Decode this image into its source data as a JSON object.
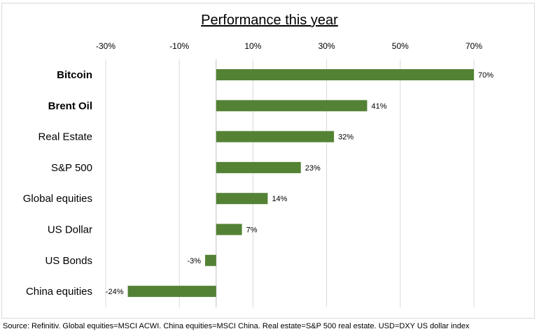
{
  "chart_data": {
    "type": "bar",
    "orientation": "horizontal",
    "title": "Performance this year",
    "categories": [
      "Bitcoin",
      "Brent Oil",
      "Real Estate",
      "S&P 500",
      "Global equities",
      "US Dollar",
      "US Bonds",
      "China equities"
    ],
    "values": [
      70,
      41,
      32,
      23,
      14,
      7,
      -3,
      -24
    ],
    "value_labels": [
      "70%",
      "41%",
      "32%",
      "23%",
      "14%",
      "7%",
      "-3%",
      "-24%"
    ],
    "xlim": [
      -30,
      70
    ],
    "tick_values": [
      -30,
      -10,
      10,
      30,
      50,
      70
    ],
    "tick_labels": [
      "-30%",
      "-10%",
      "10%",
      "30%",
      "50%",
      "70%"
    ],
    "grid": true,
    "bar_color": "#548235",
    "grid_color": "#d9d9d9"
  },
  "source_note": "Source: Refinitiv. Global equities=MSCI ACWI. China equities=MSCI China. Real estate=S&P 500 real estate. USD=DXY US dollar index"
}
